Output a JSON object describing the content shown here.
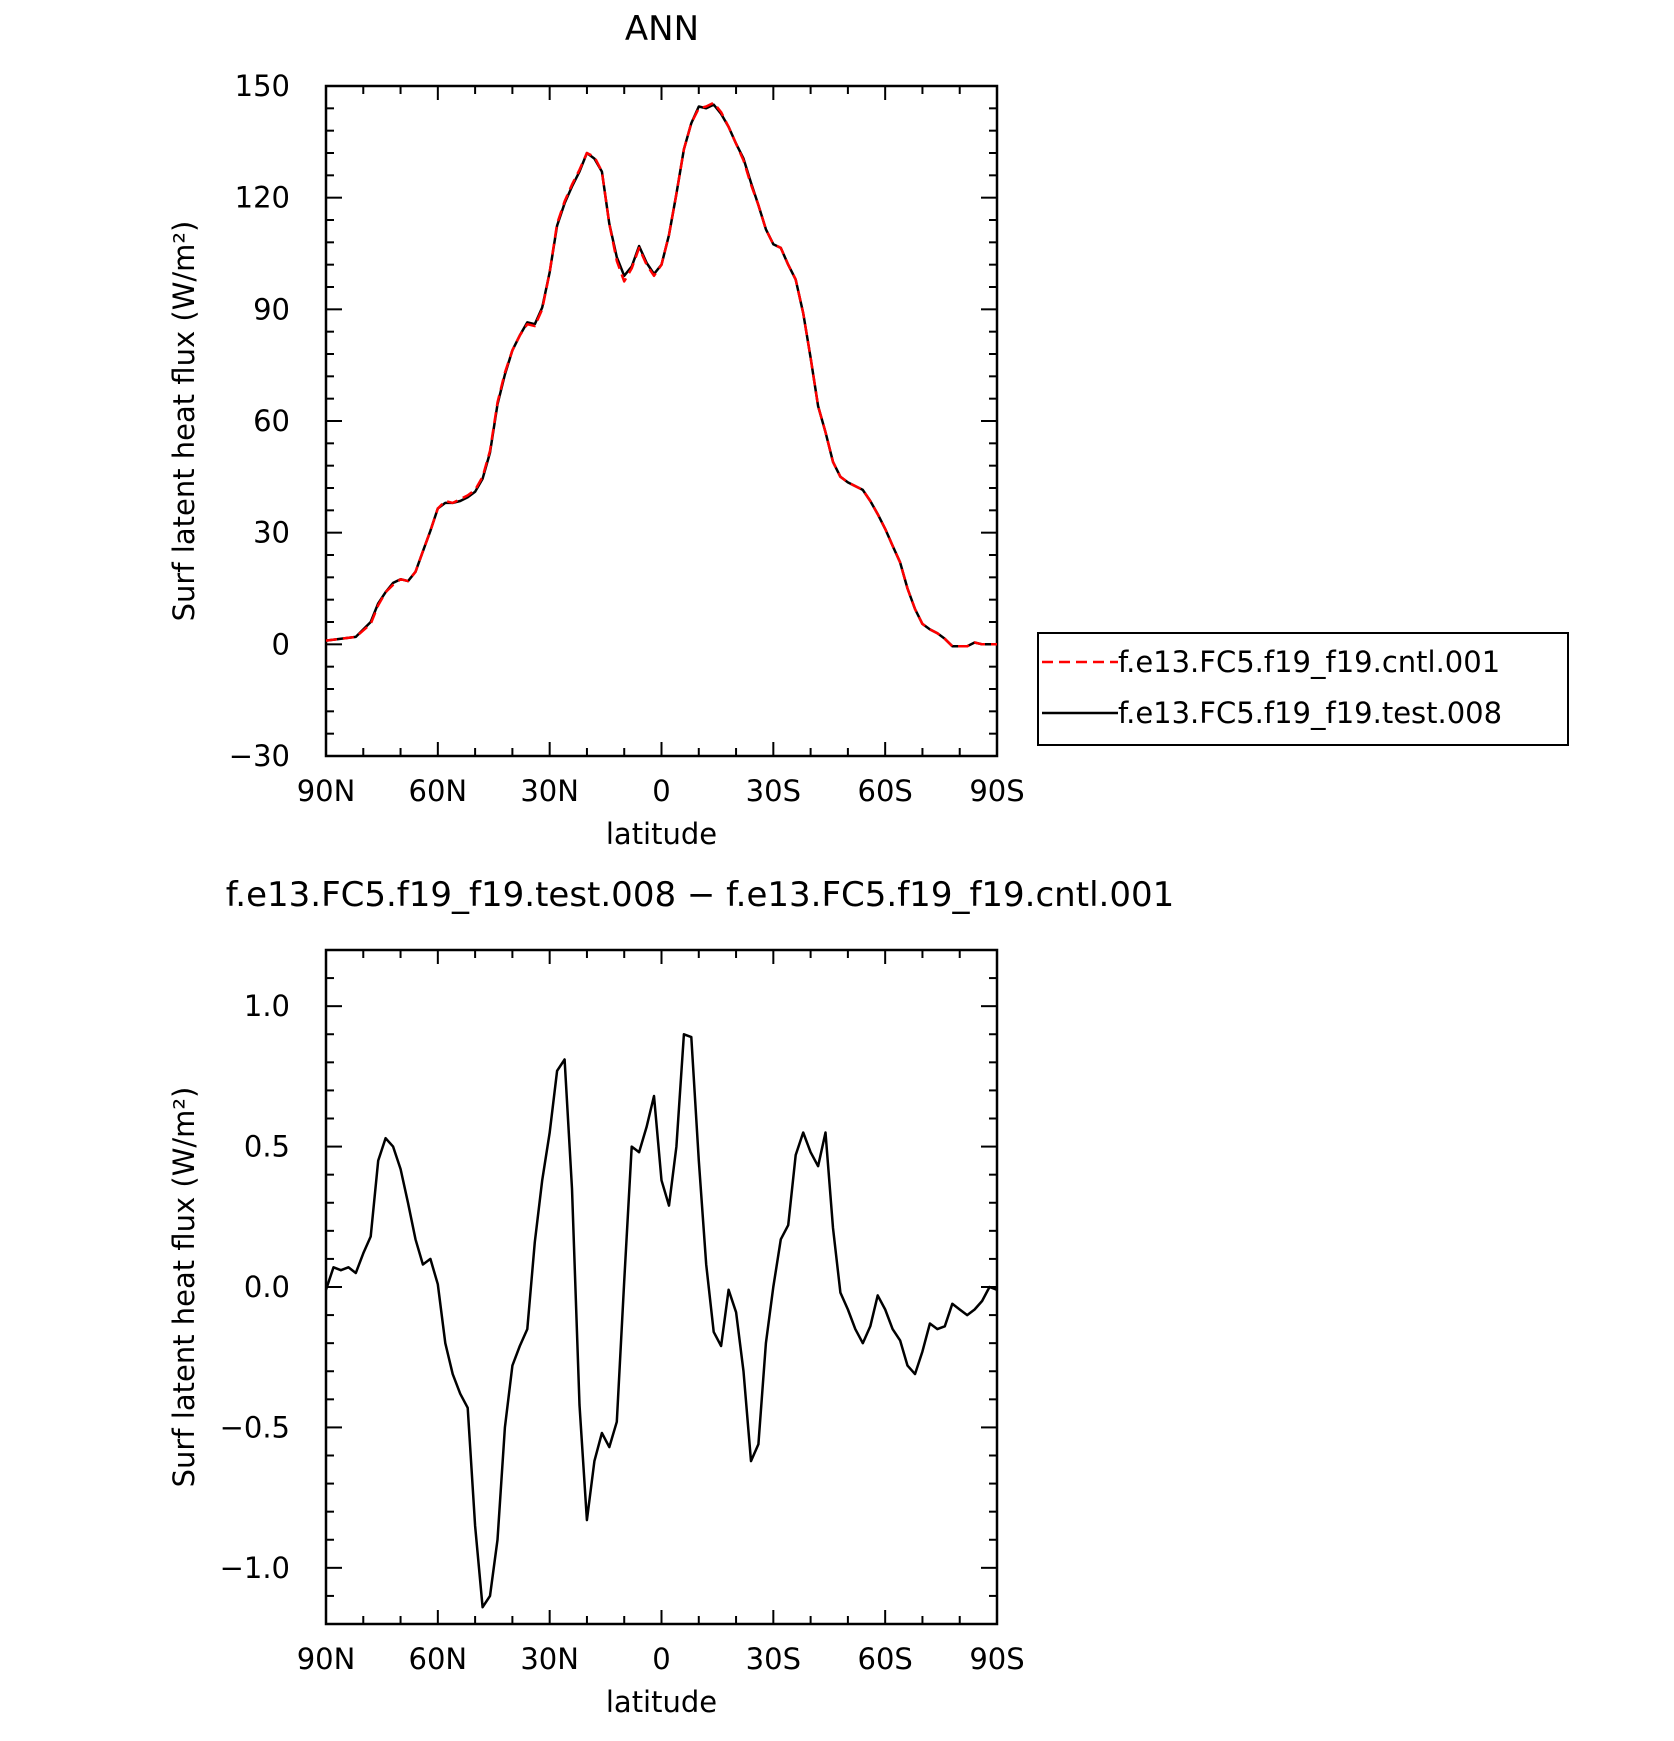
{
  "chart_data": [
    {
      "type": "line",
      "title": "ANN",
      "xlabel": "latitude",
      "ylabel": "Surf latent heat flux (W/m²)",
      "xlim": [
        90,
        -90
      ],
      "ylim": [
        -30,
        150
      ],
      "xticks": [
        90,
        60,
        30,
        0,
        -30,
        -60,
        -90
      ],
      "xtick_labels": [
        "90N",
        "60N",
        "30N",
        "0",
        "30S",
        "60S",
        "90S"
      ],
      "yticks": [
        -30,
        0,
        30,
        60,
        90,
        120,
        150
      ],
      "ytick_labels": [
        "−30",
        "0",
        "30",
        "60",
        "90",
        "120",
        "150"
      ],
      "grid": false,
      "legend_position": "right",
      "x": [
        90,
        86,
        82,
        78,
        76,
        74,
        72,
        70,
        68,
        66,
        64,
        62,
        60,
        58,
        56,
        54,
        52,
        50,
        48,
        46,
        44,
        42,
        40,
        38,
        36,
        34,
        32,
        30,
        28,
        26,
        24,
        22,
        20,
        18,
        16,
        14,
        12,
        10,
        8,
        6,
        4,
        2,
        0,
        -2,
        -4,
        -6,
        -8,
        -10,
        -12,
        -14,
        -16,
        -18,
        -20,
        -22,
        -24,
        -26,
        -28,
        -30,
        -32,
        -34,
        -36,
        -38,
        -40,
        -42,
        -44,
        -46,
        -48,
        -50,
        -52,
        -54,
        -56,
        -58,
        -60,
        -62,
        -64,
        -66,
        -68,
        -70,
        -72,
        -74,
        -76,
        -78,
        -80,
        -82,
        -84,
        -86,
        -88,
        -90
      ],
      "series": [
        {
          "name": "f.e13.FC5.f19_f19.cntl.001",
          "color": "#ff0000",
          "dash": "dashed",
          "values": [
            1,
            1.5,
            2,
            5.5,
            10.5,
            14,
            16,
            17.5,
            17,
            19.5,
            25,
            30.5,
            36.5,
            38.5,
            38,
            39,
            40,
            41.5,
            45,
            52,
            65,
            73,
            79,
            83,
            86,
            85.5,
            90,
            100,
            113,
            119,
            123.5,
            127.5,
            132,
            131,
            127,
            113,
            103,
            97.5,
            101,
            106.5,
            102,
            99,
            102,
            110,
            121,
            133,
            140,
            144,
            144.5,
            145.5,
            143,
            139,
            134.5,
            130,
            123.5,
            118,
            111.5,
            107.5,
            106.5,
            102,
            98,
            89,
            77,
            64,
            57,
            49,
            45,
            43.5,
            42.5,
            41.5,
            38.5,
            35,
            31,
            26.5,
            22,
            15,
            9.5,
            5.5,
            4,
            3,
            1.5,
            -0.5,
            -0.5,
            -0.5,
            0.5,
            0,
            0,
            0
          ]
        },
        {
          "name": "f.e13.FC5.f19_f19.test.008",
          "color": "#000000",
          "dash": "solid",
          "values": [
            1,
            1.5,
            2,
            6,
            11,
            14,
            16.5,
            17.5,
            17,
            19.5,
            25,
            30.5,
            36.5,
            38,
            38,
            38.5,
            39.5,
            41,
            44.5,
            51.5,
            64.5,
            72.5,
            79,
            83,
            86.5,
            86,
            90.5,
            100,
            112.5,
            118.5,
            123,
            127,
            132,
            130.5,
            127,
            113,
            104,
            99,
            101.5,
            107,
            102.5,
            99.5,
            102,
            110,
            121,
            133,
            140,
            144.5,
            144,
            145,
            142.5,
            139,
            134.5,
            130.5,
            124,
            118,
            111.5,
            107.5,
            106.5,
            102,
            98,
            89,
            77,
            64,
            57,
            49,
            45,
            43.5,
            42.5,
            41.5,
            38.5,
            35,
            31,
            26.5,
            22,
            15,
            9.5,
            5.5,
            4,
            3,
            1.5,
            -0.5,
            -0.5,
            -0.5,
            0.5,
            0,
            0,
            0
          ]
        }
      ]
    },
    {
      "type": "line",
      "title": "f.e13.FC5.f19_f19.test.008 − f.e13.FC5.f19_f19.cntl.001",
      "xlabel": "latitude",
      "ylabel": "Surf latent heat flux (W/m²)",
      "xlim": [
        90,
        -90
      ],
      "ylim": [
        -1.2,
        1.2
      ],
      "xticks": [
        90,
        60,
        30,
        0,
        -30,
        -60,
        -90
      ],
      "xtick_labels": [
        "90N",
        "60N",
        "30N",
        "0",
        "30S",
        "60S",
        "90S"
      ],
      "yticks": [
        -1.0,
        -0.5,
        0.0,
        0.5,
        1.0
      ],
      "ytick_labels": [
        "−1.0",
        "−0.5",
        "0.0",
        "0.5",
        "1.0"
      ],
      "grid": false,
      "x": [
        90,
        88,
        86,
        84,
        82,
        80,
        78,
        76,
        74,
        72,
        70,
        68,
        66,
        64,
        62,
        60,
        58,
        56,
        54,
        52,
        50,
        48,
        46,
        44,
        42,
        40,
        38,
        36,
        34,
        32,
        30,
        28,
        26,
        24,
        22,
        20,
        18,
        16,
        14,
        12,
        10,
        8,
        6,
        4,
        2,
        0,
        -2,
        -4,
        -6,
        -8,
        -10,
        -12,
        -14,
        -16,
        -18,
        -20,
        -22,
        -24,
        -26,
        -28,
        -30,
        -32,
        -34,
        -36,
        -38,
        -40,
        -42,
        -44,
        -46,
        -48,
        -50,
        -52,
        -54,
        -56,
        -58,
        -60,
        -62,
        -64,
        -66,
        -68,
        -70,
        -72,
        -74,
        -76,
        -78,
        -80,
        -82,
        -84,
        -86,
        -88,
        -90
      ],
      "series": [
        {
          "name": "",
          "color": "#000000",
          "dash": "solid",
          "values": [
            -0.01,
            0.07,
            0.06,
            0.07,
            0.05,
            0.12,
            0.18,
            0.45,
            0.53,
            0.5,
            0.42,
            0.3,
            0.17,
            0.08,
            0.1,
            0.01,
            -0.2,
            -0.31,
            -0.38,
            -0.43,
            -0.85,
            -1.14,
            -1.1,
            -0.9,
            -0.5,
            -0.28,
            -0.21,
            -0.15,
            0.16,
            0.38,
            0.55,
            0.77,
            0.81,
            0.35,
            -0.42,
            -0.83,
            -0.62,
            -0.52,
            -0.57,
            -0.48,
            0.02,
            0.5,
            0.48,
            0.57,
            0.68,
            0.38,
            0.29,
            0.5,
            0.9,
            0.89,
            0.45,
            0.08,
            -0.16,
            -0.21,
            -0.01,
            -0.09,
            -0.3,
            -0.62,
            -0.56,
            -0.2,
            0.0,
            0.17,
            0.22,
            0.47,
            0.55,
            0.48,
            0.43,
            0.55,
            0.21,
            -0.02,
            -0.08,
            -0.15,
            -0.2,
            -0.14,
            -0.03,
            -0.08,
            -0.15,
            -0.19,
            -0.28,
            -0.31,
            -0.23,
            -0.13,
            -0.15,
            -0.14,
            -0.06,
            -0.08,
            -0.1,
            -0.08,
            -0.05,
            0.0,
            -0.01
          ]
        }
      ]
    }
  ]
}
